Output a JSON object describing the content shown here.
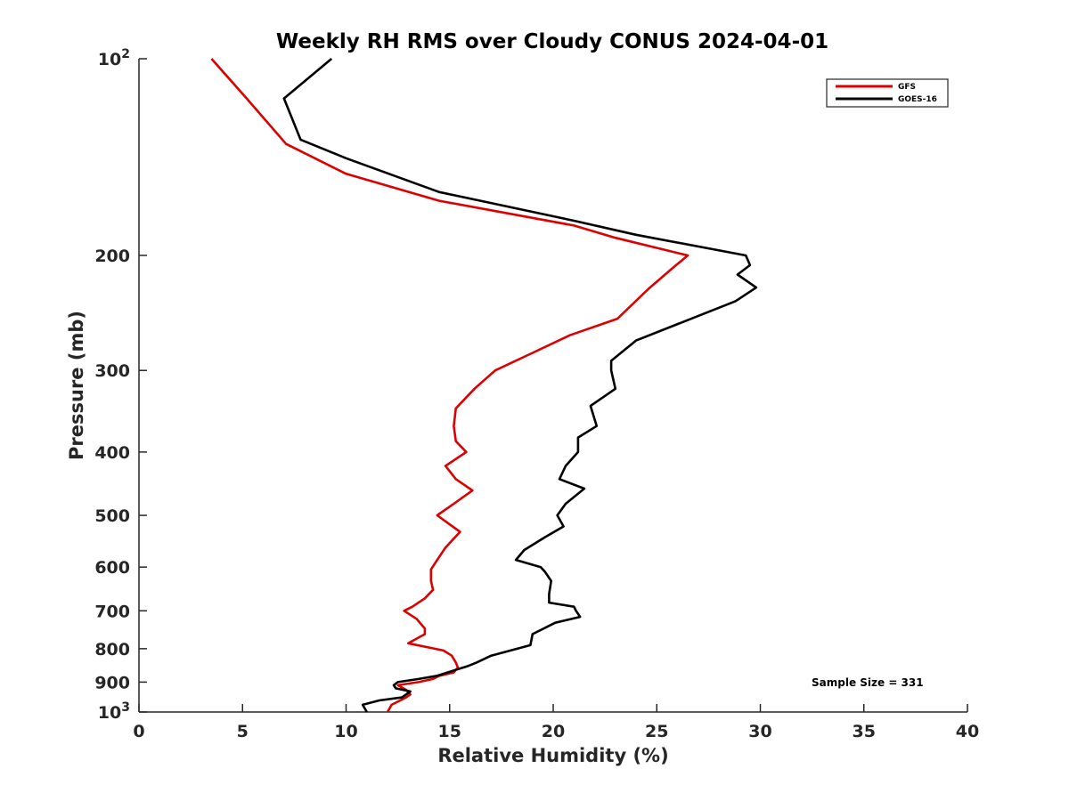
{
  "chart_data": {
    "type": "line",
    "title": "Weekly RH RMS over Cloudy CONUS 2024-04-01",
    "xlabel": "Relative Humidity (%)",
    "ylabel": "Pressure (mb)",
    "xlim": [
      0,
      40
    ],
    "ylim": [
      100,
      1000
    ],
    "y_scale": "log",
    "y_reversed": true,
    "x_ticks": [
      "0",
      "5",
      "10",
      "15",
      "20",
      "25",
      "30",
      "35",
      "40"
    ],
    "x_tick_values": [
      0,
      5,
      10,
      15,
      20,
      25,
      30,
      35,
      40
    ],
    "y_tick_values": [
      100,
      200,
      300,
      400,
      500,
      600,
      700,
      800,
      900,
      1000
    ],
    "y_ticks": [
      {
        "base": "10",
        "exp": "2"
      },
      {
        "base": "200",
        "exp": ""
      },
      {
        "base": "300",
        "exp": ""
      },
      {
        "base": "400",
        "exp": ""
      },
      {
        "base": "500",
        "exp": ""
      },
      {
        "base": "600",
        "exp": ""
      },
      {
        "base": "700",
        "exp": ""
      },
      {
        "base": "800",
        "exp": ""
      },
      {
        "base": "900",
        "exp": ""
      },
      {
        "base": "10",
        "exp": "3"
      }
    ],
    "legend_position": "top-right",
    "grid": false,
    "annotation": "Sample Size = 331",
    "series": [
      {
        "name": "GFS",
        "color": "#dd0000",
        "points": [
          [
            3.5,
            100
          ],
          [
            5.2,
            115
          ],
          [
            7.1,
            135
          ],
          [
            10,
            150
          ],
          [
            14.5,
            165
          ],
          [
            21,
            180
          ],
          [
            23,
            188
          ],
          [
            26.5,
            200
          ],
          [
            25.7,
            210
          ],
          [
            24.6,
            225
          ],
          [
            23.1,
            250
          ],
          [
            20.8,
            265
          ],
          [
            19,
            282
          ],
          [
            17.2,
            300
          ],
          [
            16.2,
            320
          ],
          [
            15.3,
            343
          ],
          [
            15.2,
            365
          ],
          [
            15.3,
            385
          ],
          [
            15.8,
            400
          ],
          [
            14.8,
            420
          ],
          [
            15.3,
            440
          ],
          [
            16.1,
            458
          ],
          [
            15.2,
            480
          ],
          [
            14.4,
            500
          ],
          [
            15.5,
            530
          ],
          [
            14.8,
            560
          ],
          [
            14.4,
            585
          ],
          [
            14.1,
            605
          ],
          [
            14.1,
            630
          ],
          [
            14.2,
            650
          ],
          [
            13.8,
            670
          ],
          [
            13.2,
            690
          ],
          [
            12.8,
            700
          ],
          [
            13.4,
            720
          ],
          [
            13.8,
            745
          ],
          [
            13.8,
            760
          ],
          [
            13,
            785
          ],
          [
            14.7,
            805
          ],
          [
            15.1,
            820
          ],
          [
            15.3,
            840
          ],
          [
            15.4,
            855
          ],
          [
            15.2,
            870
          ],
          [
            14.5,
            880
          ],
          [
            14.2,
            890
          ],
          [
            13.5,
            900
          ],
          [
            12.5,
            910
          ],
          [
            12.9,
            925
          ],
          [
            13.1,
            940
          ],
          [
            12.9,
            950
          ],
          [
            12.2,
            975
          ],
          [
            12,
            1000
          ]
        ]
      },
      {
        "name": "GOES-16",
        "color": "#000000",
        "points": [
          [
            9.3,
            100
          ],
          [
            7,
            115
          ],
          [
            7.8,
            133
          ],
          [
            10,
            142
          ],
          [
            14.5,
            160
          ],
          [
            21,
            177
          ],
          [
            24,
            186
          ],
          [
            29.3,
            200
          ],
          [
            29.5,
            207
          ],
          [
            28.9,
            214
          ],
          [
            29.8,
            224
          ],
          [
            28.8,
            235
          ],
          [
            24,
            270
          ],
          [
            22.8,
            290
          ],
          [
            22.8,
            300
          ],
          [
            23,
            320
          ],
          [
            21.8,
            340
          ],
          [
            22.1,
            365
          ],
          [
            21.2,
            380
          ],
          [
            21.2,
            400
          ],
          [
            20.6,
            420
          ],
          [
            20.3,
            440
          ],
          [
            21.5,
            455
          ],
          [
            20.6,
            480
          ],
          [
            20.2,
            500
          ],
          [
            20.5,
            520
          ],
          [
            19.6,
            540
          ],
          [
            18.6,
            565
          ],
          [
            18.2,
            585
          ],
          [
            19.4,
            600
          ],
          [
            19.6,
            610
          ],
          [
            19.9,
            630
          ],
          [
            19.8,
            660
          ],
          [
            19.8,
            680
          ],
          [
            21,
            690
          ],
          [
            21.1,
            700
          ],
          [
            21.3,
            715
          ],
          [
            20.1,
            730
          ],
          [
            19,
            760
          ],
          [
            18.9,
            790
          ],
          [
            17,
            820
          ],
          [
            16.3,
            840
          ],
          [
            15.9,
            850
          ],
          [
            15.4,
            860
          ],
          [
            14.4,
            880
          ],
          [
            13.5,
            890
          ],
          [
            12.5,
            900
          ],
          [
            12.3,
            910
          ],
          [
            12.4,
            920
          ],
          [
            13.1,
            930
          ],
          [
            12.7,
            950
          ],
          [
            11.6,
            960
          ],
          [
            10.8,
            975
          ],
          [
            11,
            1000
          ]
        ]
      }
    ]
  }
}
